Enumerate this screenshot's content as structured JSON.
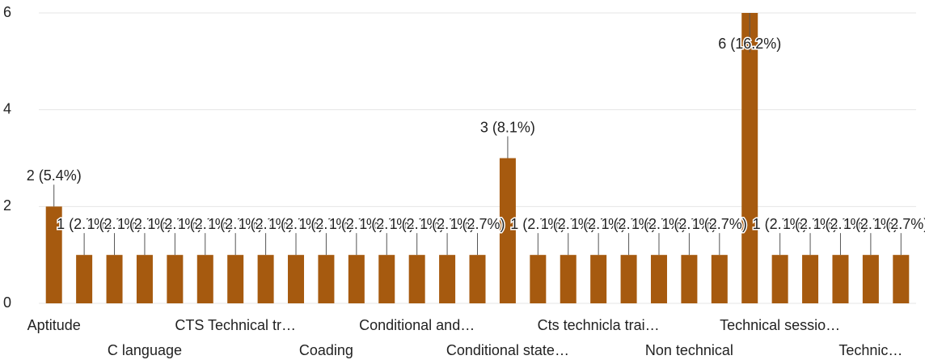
{
  "chart_data": {
    "type": "bar",
    "categories": [
      "Aptitude",
      null,
      null,
      "C language",
      null,
      null,
      "CTS Technical tr…",
      null,
      null,
      "Coading",
      null,
      null,
      "Conditional and…",
      null,
      null,
      "Conditional state…",
      null,
      null,
      "Cts technicla trai…",
      null,
      null,
      "Non technical",
      null,
      null,
      "Technical sessio…",
      null,
      null,
      "Technic…",
      null
    ],
    "values": [
      2,
      1,
      1,
      1,
      1,
      1,
      1,
      1,
      1,
      1,
      1,
      1,
      1,
      1,
      1,
      3,
      1,
      1,
      1,
      1,
      1,
      1,
      1,
      6,
      1,
      1,
      1,
      1,
      1
    ],
    "value_labels": [
      "2 (5.4%)",
      "1 (2.7%)",
      "1 (2.7%)",
      "1 (2.7%)",
      "1 (2.7%)",
      "1 (2.7%)",
      "1 (2.7%)",
      "1 (2.7%)",
      "1 (2.7%)",
      "1 (2.7%)",
      "1 (2.7%)",
      "1 (2.7%)",
      "1 (2.7%)",
      "1 (2.7%)",
      "1 (2.7%)",
      "3 (8.1%)",
      "1 (2.7%)",
      "1 (2.7%)",
      "1 (2.7%)",
      "1 (2.7%)",
      "1 (2.7%)",
      "1 (2.7%)",
      "1 (2.7%)",
      "6 (16.2%)",
      "1 (2.7%)",
      "1 (2.7%)",
      "1 (2.7%)",
      "1 (2.7%)",
      "1 (2.7%)"
    ],
    "color": "#a65a0f",
    "ylim": [
      0,
      6
    ],
    "yticks": [
      0,
      2,
      4,
      6
    ],
    "grid": true
  }
}
